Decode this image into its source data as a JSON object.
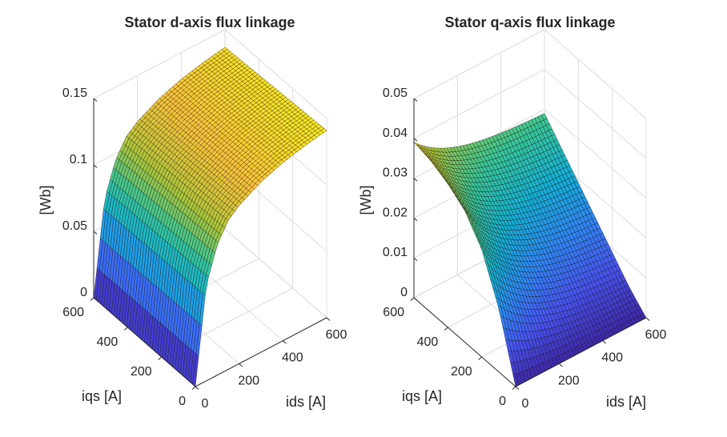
{
  "chart_data": [
    {
      "type": "surface",
      "title": "Stator d-axis flux linkage",
      "xlabel": "ids [A]",
      "ylabel": "iqs [A]",
      "zlabel": "[Wb]",
      "xlim": [
        0,
        600
      ],
      "ylim": [
        0,
        600
      ],
      "zlim": [
        0,
        0.15
      ],
      "xticks": [
        "0",
        "200",
        "400",
        "600"
      ],
      "yticks": [
        "0",
        "200",
        "400",
        "600"
      ],
      "zticks": [
        "0",
        "0.05",
        "0.1",
        "0.15"
      ],
      "colormap": "parula",
      "grid": true,
      "shape": "z rises steeply with ids, saturating near 0.14 Wb; nearly independent of iqs",
      "ids_samples": [
        0,
        50,
        100,
        150,
        200,
        300,
        400,
        500,
        600
      ],
      "z_vs_ids": [
        0.0,
        0.072,
        0.098,
        0.112,
        0.119,
        0.128,
        0.134,
        0.138,
        0.141
      ]
    },
    {
      "type": "surface",
      "title": "Stator q-axis flux linkage",
      "xlabel": "ids [A]",
      "ylabel": "iqs [A]",
      "zlabel": "[Wb]",
      "xlim": [
        0,
        600
      ],
      "ylim": [
        0,
        600
      ],
      "zlim": [
        0,
        0.05
      ],
      "xticks": [
        "0",
        "200",
        "400",
        "600"
      ],
      "yticks": [
        "0",
        "200",
        "400",
        "600"
      ],
      "zticks": [
        "0",
        "0.01",
        "0.02",
        "0.03",
        "0.04",
        "0.05"
      ],
      "colormap": "parula",
      "grid": true,
      "shape": "z rises with iqs (saturating near 0.04 Wb) and decreases with ids",
      "iqs_samples": [
        0,
        100,
        200,
        300,
        400,
        500,
        600
      ],
      "z_vs_iqs_at_ids0": [
        0.0,
        0.016,
        0.027,
        0.033,
        0.036,
        0.038,
        0.039
      ],
      "z_vs_iqs_at_ids600": [
        0.0,
        0.004,
        0.009,
        0.014,
        0.019,
        0.024,
        0.029
      ]
    }
  ]
}
